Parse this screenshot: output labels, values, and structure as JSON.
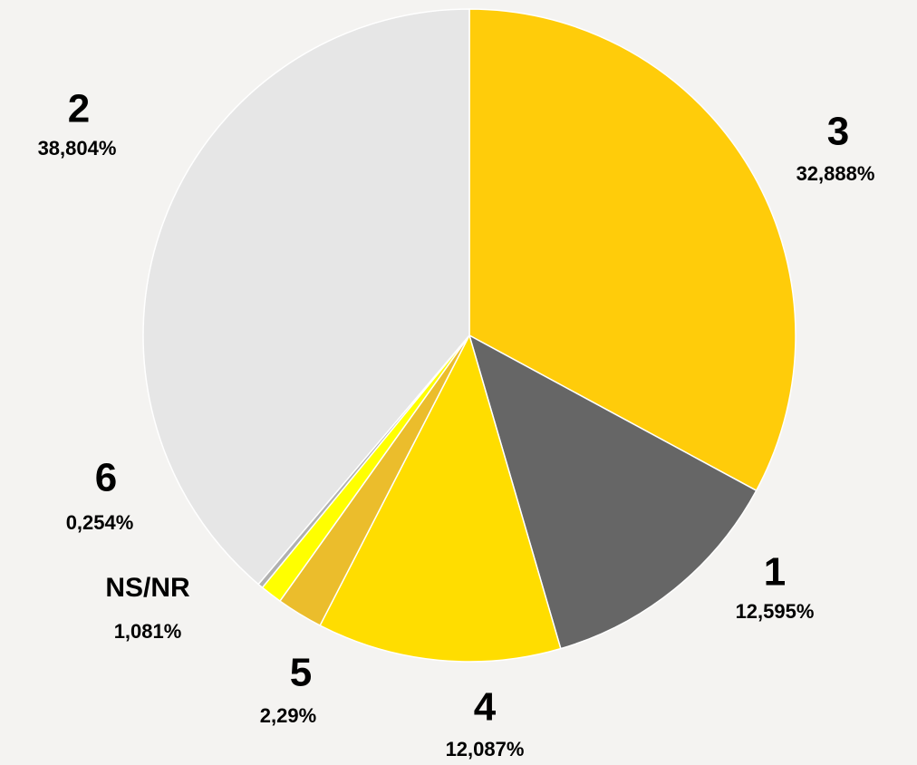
{
  "chart_data": {
    "type": "pie",
    "categories": [
      "3",
      "1",
      "4",
      "5",
      "NS/NR",
      "6",
      "2"
    ],
    "values": [
      32.888,
      12.595,
      12.087,
      2.29,
      1.081,
      0.254,
      38.804
    ],
    "value_labels": [
      "32,888%",
      "12,595%",
      "12,087%",
      "2,29%",
      "1,081%",
      "0,254%",
      "38,804%"
    ],
    "colors": [
      "#ffcc0a",
      "#666666",
      "#ffdd00",
      "#ebbd2c",
      "#ffff00",
      "#b0b0b0",
      "#e6e6e6"
    ]
  }
}
